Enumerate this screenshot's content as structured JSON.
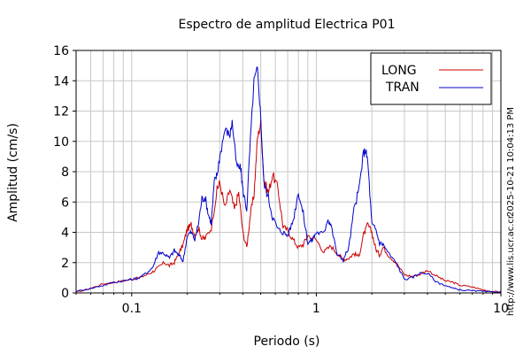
{
  "chart_data": {
    "type": "line",
    "title": "Espectro de amplitud Electrica P01",
    "xlabel": "Periodo (s)",
    "ylabel": "Amplitud (cm/s)",
    "x_scale": "log",
    "xlim": [
      0.05,
      10
    ],
    "ylim": [
      0,
      16
    ],
    "x_ticks": [
      0.1,
      1,
      10
    ],
    "x_tick_labels": [
      "0.1",
      "1",
      "10"
    ],
    "y_ticks": [
      0,
      2,
      4,
      6,
      8,
      10,
      12,
      14,
      16
    ],
    "y_tick_labels": [
      "0",
      "2",
      "4",
      "6",
      "8",
      "10",
      "12",
      "14",
      "16"
    ],
    "grid": true,
    "legend_position": "top-right",
    "series": [
      {
        "name": "LONG",
        "color": "#cc0000",
        "x": [
          0.05,
          0.06,
          0.07,
          0.08,
          0.09,
          0.1,
          0.11,
          0.12,
          0.13,
          0.14,
          0.15,
          0.16,
          0.17,
          0.18,
          0.19,
          0.2,
          0.21,
          0.22,
          0.23,
          0.24,
          0.25,
          0.27,
          0.29,
          0.3,
          0.32,
          0.34,
          0.36,
          0.38,
          0.4,
          0.42,
          0.44,
          0.46,
          0.48,
          0.5,
          0.52,
          0.55,
          0.58,
          0.62,
          0.66,
          0.7,
          0.75,
          0.8,
          0.85,
          0.9,
          1.0,
          1.1,
          1.2,
          1.3,
          1.4,
          1.5,
          1.6,
          1.7,
          1.8,
          1.9,
          2.0,
          2.1,
          2.2,
          2.3,
          2.5,
          2.7,
          3.0,
          3.3,
          3.6,
          4.0,
          4.5,
          5.0,
          5.5,
          6.0,
          7.0,
          8.0,
          9.0,
          10.0
        ],
        "y": [
          0.05,
          0.3,
          0.6,
          0.7,
          0.8,
          0.9,
          1.0,
          1.2,
          1.4,
          1.7,
          2.0,
          1.8,
          2.0,
          2.6,
          3.2,
          4.2,
          4.5,
          3.8,
          4.3,
          3.6,
          3.6,
          4.3,
          6.8,
          7.3,
          5.6,
          6.8,
          5.5,
          6.6,
          4.0,
          3.0,
          5.2,
          6.5,
          10.2,
          11.2,
          7.5,
          6.6,
          7.8,
          6.9,
          4.4,
          4.1,
          3.5,
          3.0,
          3.2,
          3.8,
          3.5,
          2.7,
          3.1,
          2.6,
          2.2,
          2.3,
          2.6,
          2.4,
          3.8,
          4.5,
          4.0,
          2.9,
          2.5,
          3.0,
          2.4,
          2.0,
          1.2,
          1.1,
          1.2,
          1.5,
          1.1,
          0.8,
          0.7,
          0.5,
          0.4,
          0.2,
          0.1,
          0.05
        ]
      },
      {
        "name": "TRAN",
        "color": "#0000cc",
        "x": [
          0.05,
          0.06,
          0.07,
          0.08,
          0.09,
          0.1,
          0.11,
          0.12,
          0.13,
          0.14,
          0.15,
          0.16,
          0.17,
          0.18,
          0.19,
          0.2,
          0.21,
          0.22,
          0.23,
          0.24,
          0.25,
          0.26,
          0.27,
          0.28,
          0.29,
          0.3,
          0.32,
          0.34,
          0.35,
          0.37,
          0.39,
          0.4,
          0.42,
          0.44,
          0.46,
          0.48,
          0.5,
          0.52,
          0.55,
          0.58,
          0.62,
          0.66,
          0.7,
          0.75,
          0.8,
          0.85,
          0.9,
          0.95,
          1.0,
          1.1,
          1.15,
          1.2,
          1.3,
          1.4,
          1.5,
          1.6,
          1.7,
          1.8,
          1.85,
          1.9,
          2.0,
          2.1,
          2.2,
          2.3,
          2.5,
          2.7,
          3.0,
          3.3,
          3.6,
          4.0,
          4.5,
          5.0,
          5.5,
          6.0,
          7.0,
          8.0,
          9.0,
          10.0
        ],
        "y": [
          0.1,
          0.3,
          0.5,
          0.7,
          0.8,
          0.9,
          1.0,
          1.3,
          1.7,
          2.7,
          2.6,
          2.3,
          2.8,
          2.5,
          2.1,
          3.8,
          4.0,
          3.5,
          4.6,
          6.2,
          6.3,
          5.2,
          4.6,
          7.3,
          7.8,
          9.0,
          10.8,
          10.4,
          11.3,
          8.4,
          8.2,
          6.8,
          5.5,
          10.2,
          14.0,
          14.8,
          11.6,
          7.2,
          6.3,
          5.0,
          4.2,
          4.0,
          3.8,
          4.8,
          6.7,
          5.2,
          3.3,
          3.5,
          4.0,
          3.9,
          4.9,
          4.5,
          2.5,
          2.2,
          3.0,
          5.5,
          6.8,
          9.2,
          9.4,
          8.7,
          4.5,
          4.2,
          3.3,
          3.2,
          2.5,
          2.0,
          0.9,
          1.0,
          1.3,
          1.3,
          0.7,
          0.5,
          0.3,
          0.2,
          0.15,
          0.1,
          0.05,
          0.1
        ]
      }
    ]
  },
  "side_text": {
    "timestamp": "2025-10-21 10:04:13 PM",
    "url": "http://www.lis.ucr.ac.cr"
  }
}
